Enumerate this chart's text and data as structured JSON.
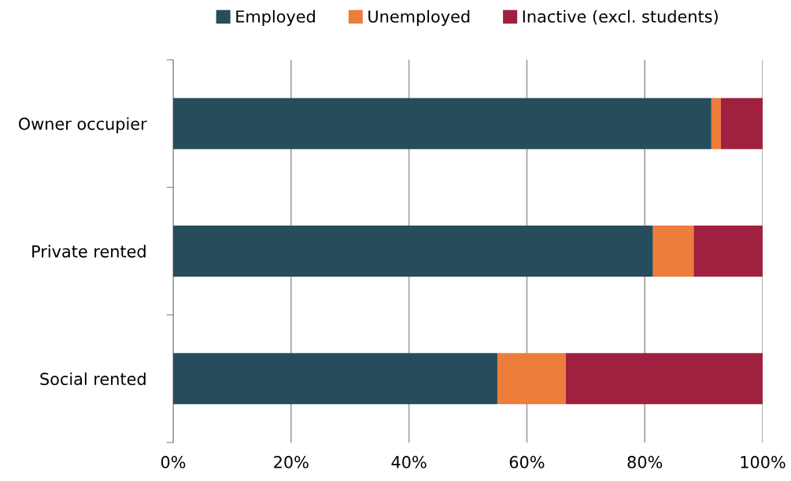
{
  "chart_data": {
    "type": "bar",
    "orientation": "horizontal",
    "stacked": true,
    "categories": [
      "Owner occupier",
      "Private rented",
      "Social rented"
    ],
    "series": [
      {
        "name": "Employed",
        "color": "#264d5b",
        "values": [
          91.3,
          81.4,
          55.0
        ]
      },
      {
        "name": "Unemployed",
        "color": "#ed7d3a",
        "values": [
          1.6,
          6.9,
          11.6
        ]
      },
      {
        "name": "Inactive (excl. students)",
        "color": "#a02040",
        "values": [
          7.1,
          11.7,
          33.4
        ]
      }
    ],
    "xlim": [
      0,
      100
    ],
    "xticks": [
      {
        "value": 0,
        "label": "0%"
      },
      {
        "value": 20,
        "label": "20%"
      },
      {
        "value": 40,
        "label": "40%"
      },
      {
        "value": 60,
        "label": "60%"
      },
      {
        "value": 80,
        "label": "80%"
      },
      {
        "value": 100,
        "label": "100%"
      }
    ],
    "grid": "x",
    "legend": "top"
  }
}
